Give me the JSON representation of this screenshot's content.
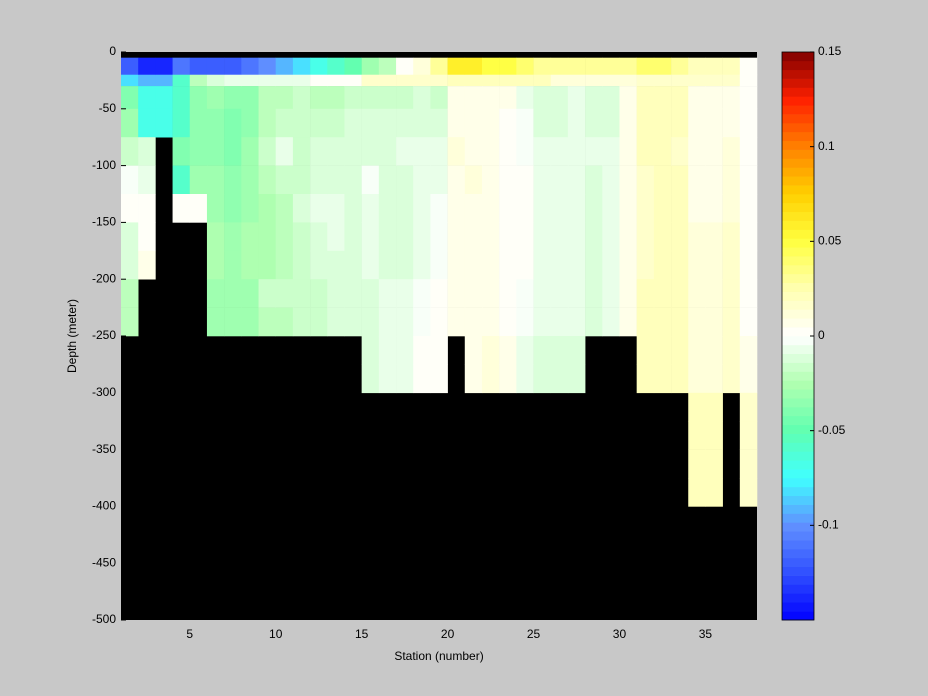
{
  "chart_data": {
    "type": "heatmap",
    "xlabel": "Station (number)",
    "ylabel": "Depth (meter)",
    "xlim": [
      1,
      38
    ],
    "xticks": [
      5,
      10,
      15,
      20,
      25,
      30,
      35
    ],
    "ylim": [
      -500,
      0
    ],
    "yticks": [
      0,
      -50,
      -100,
      -150,
      -200,
      -250,
      -300,
      -350,
      -400,
      -450,
      -500
    ],
    "x_edges": [
      1,
      2,
      3,
      4,
      5,
      6,
      7,
      8,
      9,
      10,
      11,
      12,
      13,
      14,
      15,
      16,
      17,
      18,
      19,
      20,
      21,
      22,
      23,
      24,
      25,
      26,
      27,
      28,
      29,
      30,
      31,
      32,
      33,
      34,
      35,
      36,
      37,
      38
    ],
    "depth_edges": [
      -5,
      -20,
      -30,
      -50,
      -75,
      -100,
      -125,
      -150,
      -175,
      -200,
      -225,
      -250,
      -275,
      -300,
      -325,
      -350,
      -375,
      -400
    ],
    "clim": [
      -0.15,
      0.15
    ],
    "cticks": [
      0.15,
      0.1,
      0.05,
      0,
      -0.05,
      -0.1
    ],
    "colormap": [
      "#0000ff",
      "#3050ff",
      "#6090ff",
      "#40ffff",
      "#60ffb0",
      "#b0ffb0",
      "#ffffff",
      "#ffffb0",
      "#ffff40",
      "#ffd000",
      "#ff8000",
      "#ff2000",
      "#800000"
    ],
    "nan_color": "#000000",
    "values": [
      [
        -0.12,
        -0.08,
        -0.04,
        -0.03,
        -0.015,
        -0.002,
        0.002,
        -0.01,
        -0.01,
        -0.02,
        -0.02,
        null,
        null,
        null,
        null,
        null,
        null
      ],
      [
        -0.14,
        -0.09,
        -0.07,
        -0.07,
        -0.01,
        -0.005,
        0.002,
        0.002,
        0.005,
        null,
        null,
        null,
        null,
        null,
        null,
        null,
        null
      ],
      [
        -0.14,
        -0.09,
        -0.07,
        -0.07,
        null,
        null,
        null,
        null,
        null,
        null,
        null,
        null,
        null,
        null,
        null,
        null,
        null
      ],
      [
        -0.11,
        -0.06,
        -0.06,
        -0.06,
        -0.04,
        -0.06,
        0.003,
        null,
        null,
        null,
        null,
        null,
        null,
        null,
        null,
        null,
        null
      ],
      [
        -0.12,
        -0.02,
        -0.035,
        -0.035,
        -0.035,
        -0.03,
        0.003,
        null,
        null,
        null,
        null,
        null,
        null,
        null,
        null,
        null,
        null
      ],
      [
        -0.12,
        -0.01,
        -0.03,
        -0.035,
        -0.035,
        -0.03,
        -0.03,
        -0.025,
        -0.025,
        -0.03,
        -0.03,
        null,
        null,
        null,
        null,
        null,
        null
      ],
      [
        -0.12,
        -0.005,
        -0.035,
        -0.04,
        -0.04,
        -0.035,
        -0.035,
        -0.03,
        -0.03,
        -0.03,
        -0.03,
        null,
        null,
        null,
        null,
        null,
        null
      ],
      [
        -0.11,
        -0.005,
        -0.035,
        -0.035,
        -0.03,
        -0.03,
        -0.03,
        -0.025,
        -0.025,
        -0.03,
        -0.03,
        null,
        null,
        null,
        null,
        null,
        null
      ],
      [
        -0.1,
        -0.005,
        -0.02,
        -0.02,
        -0.015,
        -0.02,
        -0.025,
        -0.025,
        -0.025,
        -0.015,
        -0.02,
        null,
        null,
        null,
        null,
        null,
        null
      ],
      [
        -0.09,
        -0.005,
        -0.02,
        -0.015,
        -0.005,
        -0.015,
        -0.02,
        -0.02,
        -0.02,
        -0.015,
        -0.02,
        null,
        null,
        null,
        null,
        null,
        null
      ],
      [
        -0.08,
        -0.005,
        -0.015,
        -0.015,
        -0.015,
        -0.015,
        -0.01,
        -0.015,
        -0.015,
        -0.015,
        -0.015,
        null,
        null,
        null,
        null,
        null,
        null
      ],
      [
        -0.07,
        0,
        -0.02,
        -0.015,
        -0.01,
        -0.01,
        -0.005,
        -0.01,
        -0.01,
        -0.015,
        -0.015,
        null,
        null,
        null,
        null,
        null,
        null
      ],
      [
        -0.06,
        0,
        -0.02,
        -0.015,
        -0.01,
        -0.01,
        -0.005,
        -0.005,
        -0.01,
        -0.01,
        -0.01,
        null,
        null,
        null,
        null,
        null,
        null
      ],
      [
        -0.05,
        0,
        -0.015,
        -0.01,
        -0.01,
        -0.01,
        -0.01,
        -0.01,
        -0.01,
        -0.01,
        -0.01,
        null,
        null,
        null,
        null,
        null,
        null
      ],
      [
        -0.03,
        0.015,
        -0.015,
        -0.01,
        -0.01,
        -0.002,
        -0.005,
        -0.005,
        -0.005,
        -0.01,
        -0.01,
        -0.01,
        -0.01,
        null,
        null,
        null,
        null
      ],
      [
        -0.02,
        0.015,
        -0.015,
        -0.01,
        -0.01,
        -0.01,
        -0.01,
        -0.01,
        -0.01,
        -0.005,
        -0.005,
        -0.005,
        -0.005,
        null,
        null,
        null,
        null
      ],
      [
        0,
        0.015,
        -0.015,
        -0.01,
        -0.005,
        -0.01,
        -0.01,
        -0.01,
        -0.01,
        -0.005,
        -0.005,
        -0.005,
        -0.005,
        null,
        null,
        null,
        null
      ],
      [
        0.01,
        0.015,
        -0.01,
        -0.01,
        -0.005,
        -0.005,
        -0.005,
        -0.005,
        -0.005,
        -0.003,
        -0.003,
        0.002,
        0.002,
        null,
        null,
        null,
        null
      ],
      [
        0.03,
        0.015,
        -0.015,
        -0.01,
        -0.005,
        -0.005,
        -0.002,
        -0.002,
        -0.002,
        0.002,
        0.002,
        0.002,
        0.002,
        null,
        null,
        null,
        null
      ],
      [
        0.06,
        0.02,
        0.005,
        0.005,
        0.01,
        0.005,
        0.005,
        0.005,
        0.005,
        0.005,
        0.005,
        null,
        null,
        null,
        null,
        null,
        null
      ],
      [
        0.06,
        0.02,
        0.005,
        0.005,
        0.005,
        0.01,
        0.005,
        0.005,
        0.005,
        0.005,
        0.005,
        0.005,
        0.005,
        null,
        null,
        null,
        null
      ],
      [
        0.05,
        0.02,
        0.005,
        0.005,
        0.005,
        0.005,
        0.005,
        0.005,
        0.005,
        0.005,
        0.005,
        0.01,
        0.01,
        null,
        null,
        null,
        null
      ],
      [
        0.05,
        0.02,
        0.005,
        0.002,
        0.002,
        0.002,
        0.002,
        0.002,
        0.002,
        0.002,
        0.002,
        0.005,
        0.005,
        null,
        null,
        null,
        null
      ],
      [
        0.04,
        0.02,
        -0.005,
        -0.002,
        -0.002,
        0.002,
        0.002,
        0.002,
        0.002,
        -0.002,
        -0.002,
        -0.005,
        -0.005,
        null,
        null,
        null,
        null
      ],
      [
        0.03,
        0.02,
        -0.01,
        -0.01,
        -0.005,
        -0.005,
        -0.005,
        -0.005,
        -0.005,
        -0.005,
        -0.005,
        -0.01,
        -0.01,
        null,
        null,
        null,
        null
      ],
      [
        0.03,
        0.01,
        -0.01,
        -0.01,
        -0.005,
        -0.005,
        -0.005,
        -0.005,
        -0.005,
        -0.005,
        -0.005,
        -0.01,
        -0.01,
        null,
        null,
        null,
        null
      ],
      [
        0.03,
        0.01,
        -0.005,
        -0.005,
        -0.005,
        -0.005,
        -0.005,
        -0.005,
        -0.005,
        -0.005,
        -0.005,
        -0.01,
        -0.01,
        null,
        null,
        null,
        null
      ],
      [
        0.03,
        0.01,
        -0.01,
        -0.01,
        -0.005,
        -0.01,
        -0.01,
        -0.01,
        -0.01,
        -0.01,
        -0.01,
        null,
        null,
        null,
        null,
        null,
        null
      ],
      [
        0.03,
        0.01,
        -0.01,
        -0.01,
        -0.005,
        -0.005,
        -0.005,
        -0.005,
        -0.005,
        -0.005,
        -0.005,
        null,
        null,
        null,
        null,
        null,
        null
      ],
      [
        0.03,
        0.01,
        0.005,
        0.005,
        0.005,
        0.005,
        0.005,
        0.005,
        0.005,
        0.005,
        0.005,
        null,
        null,
        null,
        null,
        null,
        null
      ],
      [
        0.04,
        0.015,
        0.02,
        0.02,
        0.02,
        0.015,
        0.015,
        0.015,
        0.015,
        0.02,
        0.02,
        0.02,
        0.02,
        null,
        null,
        null,
        null
      ],
      [
        0.04,
        0.015,
        0.02,
        0.02,
        0.02,
        0.02,
        0.02,
        0.02,
        0.02,
        0.02,
        0.02,
        0.02,
        0.02,
        null,
        null,
        null,
        null
      ],
      [
        0.03,
        0.015,
        0.02,
        0.02,
        0.015,
        0.02,
        0.02,
        0.02,
        0.02,
        0.02,
        0.02,
        0.02,
        0.02,
        null,
        null,
        null,
        null
      ],
      [
        0.02,
        0.015,
        0.005,
        0.005,
        0.005,
        0.005,
        0.005,
        0.01,
        0.01,
        0.01,
        0.01,
        0.01,
        0.01,
        0.02,
        0.02,
        0.02,
        0.02
      ],
      [
        0.02,
        0.015,
        0.005,
        0.005,
        0.005,
        0.005,
        0.005,
        0.01,
        0.01,
        0.01,
        0.01,
        0.01,
        0.01,
        0.02,
        0.02,
        0.02,
        0.02
      ],
      [
        0.02,
        0.015,
        0.005,
        0.005,
        0.01,
        0.01,
        0.01,
        0.015,
        0.015,
        0.015,
        0.015,
        0.015,
        0.015,
        null,
        null,
        null,
        null
      ],
      [
        0,
        0,
        0,
        0.002,
        0.002,
        0,
        0,
        0,
        0,
        0.002,
        0.002,
        0.005,
        0.005,
        0.015,
        0.015,
        0.015,
        0.015
      ]
    ]
  }
}
